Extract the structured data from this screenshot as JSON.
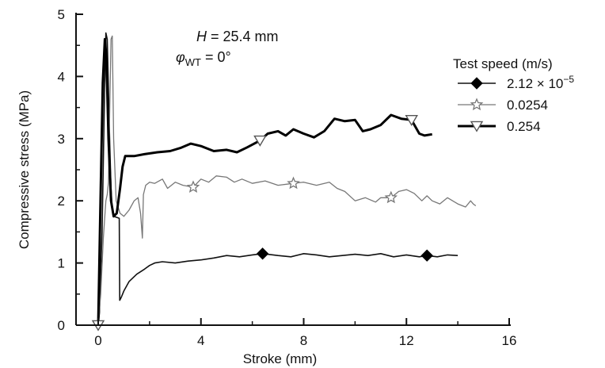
{
  "chart_data": {
    "type": "line",
    "xlabel": "Stroke (mm)",
    "ylabel": "Compressive stress (MPa)",
    "xlim": [
      0,
      16
    ],
    "ylim": [
      0,
      5
    ],
    "xticks": [
      0,
      4,
      8,
      12,
      16
    ],
    "yticks": [
      0,
      1,
      2,
      3,
      4,
      5
    ],
    "grid": false,
    "legend": {
      "title": "Test speed (m/s)",
      "placement": "right"
    },
    "annotations": [
      {
        "id": "height",
        "italic_symbol": "H",
        "rest": " = 25.4 mm"
      },
      {
        "id": "angle",
        "symbol": "φ",
        "subscript": "WT",
        "rest": " = 0°"
      }
    ],
    "series": [
      {
        "name": "2.12 × 10",
        "name_superscript": "−5",
        "marker": "diamond",
        "color": "#111111",
        "line_width": 1.6,
        "markers_at": [
          [
            6.4,
            1.15
          ],
          [
            12.8,
            1.12
          ]
        ],
        "points": [
          [
            0,
            0
          ],
          [
            0.05,
            0.2
          ],
          [
            0.15,
            1.5
          ],
          [
            0.25,
            3.8
          ],
          [
            0.3,
            4.7
          ],
          [
            0.35,
            4.6
          ],
          [
            0.45,
            2.9
          ],
          [
            0.5,
            2.2
          ],
          [
            0.55,
            1.85
          ],
          [
            0.6,
            1.75
          ],
          [
            0.75,
            1.73
          ],
          [
            0.82,
            1.72
          ],
          [
            0.84,
            0.4
          ],
          [
            0.9,
            0.45
          ],
          [
            1.0,
            0.55
          ],
          [
            1.2,
            0.7
          ],
          [
            1.5,
            0.82
          ],
          [
            1.8,
            0.9
          ],
          [
            2.0,
            0.96
          ],
          [
            2.2,
            1.0
          ],
          [
            2.5,
            1.02
          ],
          [
            3.0,
            1.0
          ],
          [
            3.5,
            1.03
          ],
          [
            4.0,
            1.05
          ],
          [
            4.5,
            1.08
          ],
          [
            5.0,
            1.12
          ],
          [
            5.5,
            1.1
          ],
          [
            6.0,
            1.13
          ],
          [
            6.4,
            1.15
          ],
          [
            7.0,
            1.12
          ],
          [
            7.5,
            1.1
          ],
          [
            8.0,
            1.15
          ],
          [
            8.5,
            1.13
          ],
          [
            9.0,
            1.1
          ],
          [
            9.5,
            1.12
          ],
          [
            10.0,
            1.14
          ],
          [
            10.5,
            1.12
          ],
          [
            11.0,
            1.15
          ],
          [
            11.5,
            1.1
          ],
          [
            12.0,
            1.13
          ],
          [
            12.5,
            1.1
          ],
          [
            12.8,
            1.12
          ],
          [
            13.2,
            1.1
          ],
          [
            13.6,
            1.13
          ],
          [
            14.0,
            1.12
          ]
        ]
      },
      {
        "name": "0.0254",
        "marker": "star",
        "color": "#777777",
        "line_width": 1.3,
        "markers_at": [
          [
            3.7,
            2.22
          ],
          [
            7.6,
            2.28
          ],
          [
            11.4,
            2.05
          ]
        ],
        "points": [
          [
            0,
            0
          ],
          [
            0.1,
            0.5
          ],
          [
            0.2,
            1.4
          ],
          [
            0.3,
            2.0
          ],
          [
            0.35,
            2.1
          ],
          [
            0.4,
            2.3
          ],
          [
            0.45,
            3.5
          ],
          [
            0.5,
            4.6
          ],
          [
            0.55,
            4.65
          ],
          [
            0.6,
            3.0
          ],
          [
            0.7,
            2.0
          ],
          [
            0.85,
            1.8
          ],
          [
            1.0,
            1.75
          ],
          [
            1.2,
            1.85
          ],
          [
            1.4,
            2.0
          ],
          [
            1.55,
            2.05
          ],
          [
            1.65,
            1.8
          ],
          [
            1.72,
            1.4
          ],
          [
            1.76,
            2.1
          ],
          [
            1.85,
            2.25
          ],
          [
            2.0,
            2.3
          ],
          [
            2.2,
            2.28
          ],
          [
            2.5,
            2.35
          ],
          [
            2.7,
            2.2
          ],
          [
            3.0,
            2.3
          ],
          [
            3.3,
            2.25
          ],
          [
            3.7,
            2.22
          ],
          [
            4.0,
            2.35
          ],
          [
            4.3,
            2.3
          ],
          [
            4.6,
            2.4
          ],
          [
            5.0,
            2.38
          ],
          [
            5.3,
            2.3
          ],
          [
            5.6,
            2.35
          ],
          [
            6.0,
            2.28
          ],
          [
            6.5,
            2.32
          ],
          [
            7.0,
            2.25
          ],
          [
            7.6,
            2.28
          ],
          [
            8.0,
            2.3
          ],
          [
            8.5,
            2.25
          ],
          [
            9.0,
            2.3
          ],
          [
            9.3,
            2.2
          ],
          [
            9.6,
            2.15
          ],
          [
            10.0,
            2.0
          ],
          [
            10.4,
            2.05
          ],
          [
            10.8,
            1.98
          ],
          [
            11.0,
            2.05
          ],
          [
            11.4,
            2.05
          ],
          [
            11.7,
            2.15
          ],
          [
            12.0,
            2.18
          ],
          [
            12.3,
            2.12
          ],
          [
            12.6,
            2.0
          ],
          [
            12.8,
            2.08
          ],
          [
            13.0,
            2.0
          ],
          [
            13.3,
            1.95
          ],
          [
            13.6,
            2.05
          ],
          [
            14.0,
            1.95
          ],
          [
            14.3,
            1.9
          ],
          [
            14.5,
            2.0
          ],
          [
            14.6,
            1.95
          ],
          [
            14.7,
            1.92
          ]
        ]
      },
      {
        "name": "0.254",
        "marker": "triangle-down",
        "color": "#000000",
        "line_width": 3,
        "markers_at": [
          [
            0,
            0
          ],
          [
            6.3,
            2.97
          ],
          [
            12.2,
            3.3
          ]
        ],
        "points": [
          [
            0,
            0
          ],
          [
            0.08,
            1.8
          ],
          [
            0.18,
            3.9
          ],
          [
            0.26,
            4.6
          ],
          [
            0.32,
            4.3
          ],
          [
            0.4,
            3.0
          ],
          [
            0.5,
            2.0
          ],
          [
            0.6,
            1.75
          ],
          [
            0.72,
            1.8
          ],
          [
            0.85,
            2.2
          ],
          [
            0.95,
            2.55
          ],
          [
            1.05,
            2.72
          ],
          [
            1.4,
            2.72
          ],
          [
            1.8,
            2.75
          ],
          [
            2.3,
            2.78
          ],
          [
            2.8,
            2.8
          ],
          [
            3.2,
            2.85
          ],
          [
            3.6,
            2.92
          ],
          [
            4.0,
            2.88
          ],
          [
            4.5,
            2.8
          ],
          [
            5.0,
            2.82
          ],
          [
            5.4,
            2.78
          ],
          [
            5.8,
            2.86
          ],
          [
            6.3,
            2.97
          ],
          [
            6.6,
            3.08
          ],
          [
            7.0,
            3.12
          ],
          [
            7.3,
            3.05
          ],
          [
            7.6,
            3.15
          ],
          [
            8.0,
            3.08
          ],
          [
            8.4,
            3.02
          ],
          [
            8.8,
            3.12
          ],
          [
            9.2,
            3.32
          ],
          [
            9.6,
            3.28
          ],
          [
            10.0,
            3.3
          ],
          [
            10.3,
            3.12
          ],
          [
            10.6,
            3.15
          ],
          [
            11.0,
            3.22
          ],
          [
            11.4,
            3.38
          ],
          [
            11.8,
            3.32
          ],
          [
            12.2,
            3.3
          ],
          [
            12.5,
            3.08
          ],
          [
            12.7,
            3.05
          ],
          [
            13.0,
            3.07
          ]
        ]
      }
    ]
  }
}
